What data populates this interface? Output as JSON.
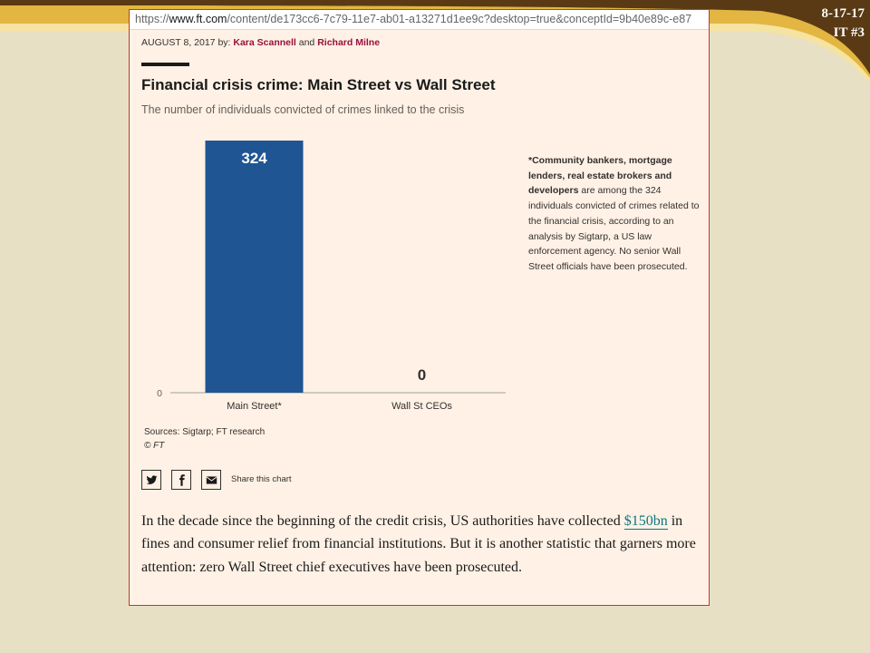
{
  "slide": {
    "date_label": "8-17-17",
    "tag_label": "IT #3",
    "band_colors": {
      "dark": "#5a3a14",
      "gold": "#e2b640",
      "light": "#f6e3a0"
    }
  },
  "browser": {
    "url_scheme": "https://",
    "url_host": "www.ft.com",
    "url_path": "/content/de173cc6-7c79-11e7-ab01-a13271d1ee9c?desktop=true&conceptId=9b40e89c-e87"
  },
  "article": {
    "byline_date": "AUGUST 8, 2017",
    "byline_by": "by:",
    "author1": "Kara Scannell",
    "byline_and": "and",
    "author2": "Richard Milne",
    "para_before_link": "In the decade since the beginning of the credit crisis, US authorities have collected ",
    "link_text": "$150bn",
    "para_after_link": " in fines and consumer relief from financial institutions. But it is another statistic that garners more attention: zero Wall Street chief executives have been prosecuted."
  },
  "chart_data": {
    "type": "bar",
    "title": "Financial crisis crime: Main Street vs Wall Street",
    "subtitle": "The number of individuals convicted of crimes linked to the crisis",
    "categories": [
      "Main Street*",
      "Wall St CEOs"
    ],
    "values": [
      324,
      0
    ],
    "data_labels": [
      "324",
      "0"
    ],
    "ytick_labels": [
      "0"
    ],
    "ylim": [
      0,
      324
    ],
    "grid": false,
    "bar_color": "#1e5592",
    "footnote_bold": "*Community bankers, mortgage lenders, real estate brokers and developers",
    "footnote_rest": " are among the 324 individuals convicted of crimes related to the financial crisis, according to an analysis by Sigtarp, a US law enforcement agency. No senior Wall Street officials have been prosecuted.",
    "sources": "Sources: Sigtarp; FT research",
    "copyright": "© FT"
  },
  "share": {
    "label": "Share this chart",
    "icons": [
      "twitter-icon",
      "facebook-icon",
      "email-icon"
    ]
  },
  "colors": {
    "card_bg": "#fff1e5",
    "card_border": "#c0392b",
    "author": "#990f3d",
    "link": "#0d7680",
    "slide_bg": "#e8e0c4"
  }
}
